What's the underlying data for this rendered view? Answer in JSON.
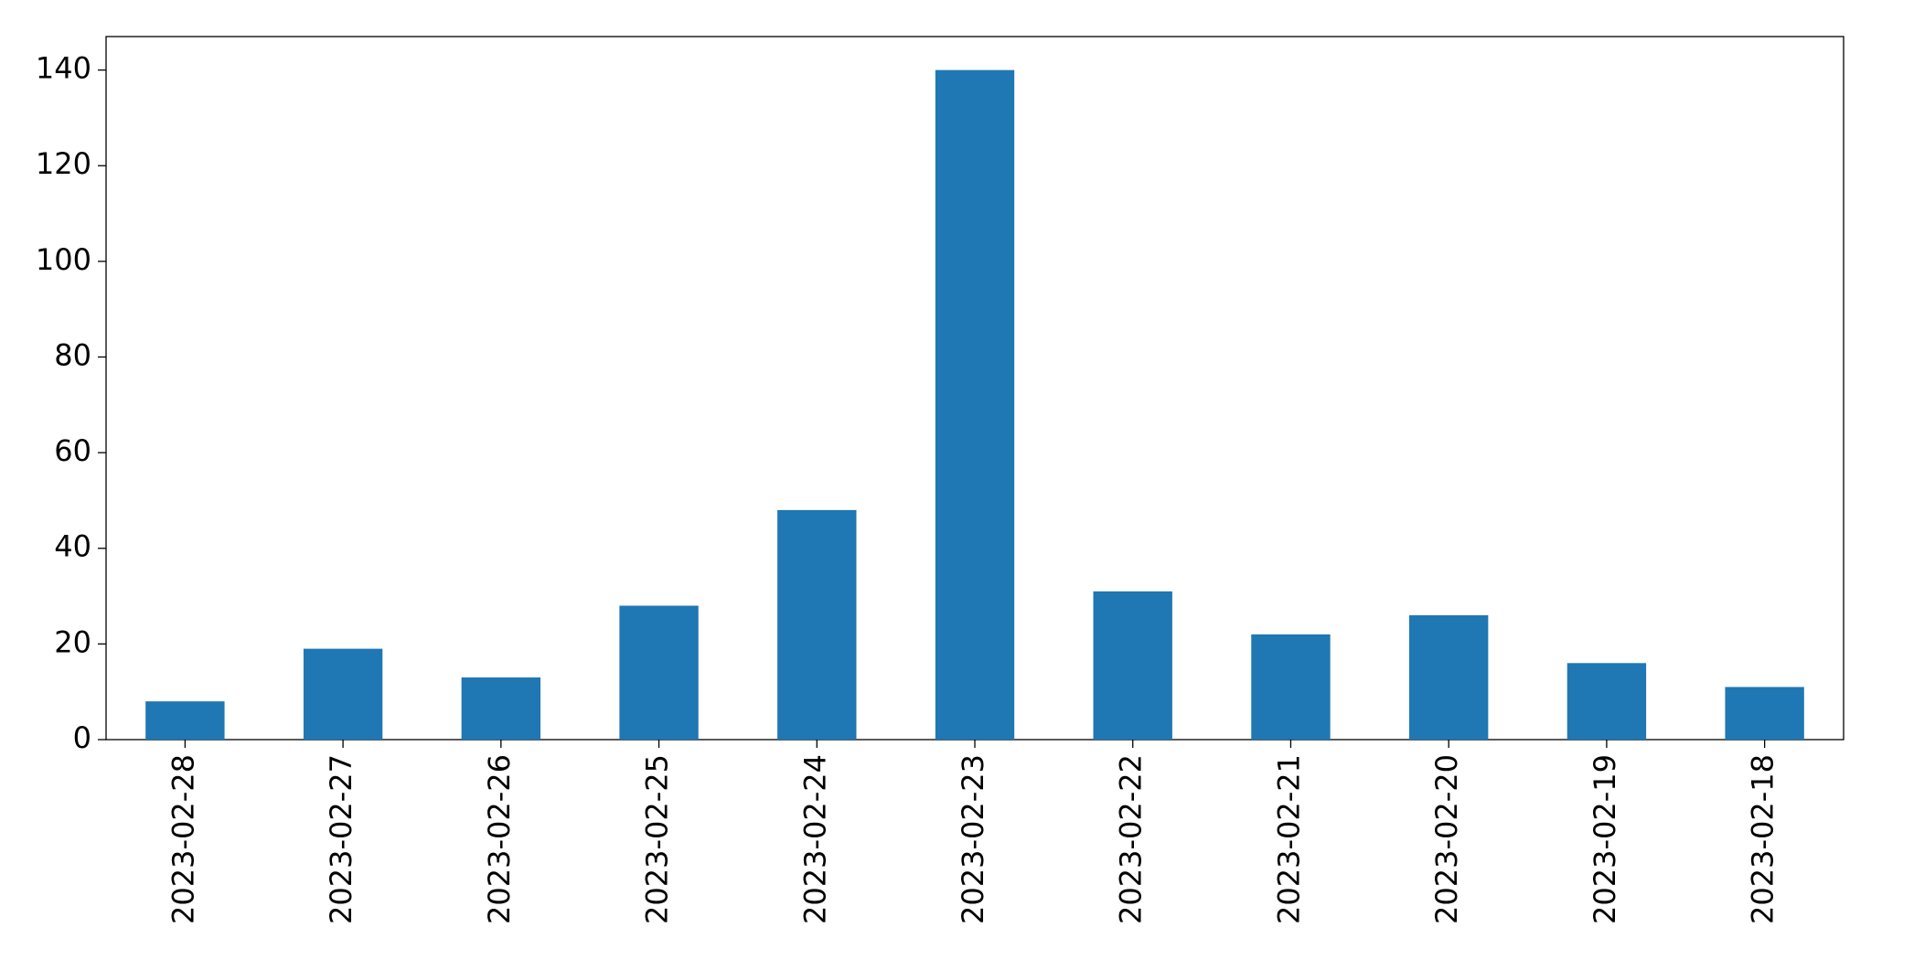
{
  "chart_data": {
    "type": "bar",
    "categories": [
      "2023-02-28",
      "2023-02-27",
      "2023-02-26",
      "2023-02-25",
      "2023-02-24",
      "2023-02-23",
      "2023-02-22",
      "2023-02-21",
      "2023-02-20",
      "2023-02-19",
      "2023-02-18"
    ],
    "values": [
      8,
      19,
      13,
      28,
      48,
      140,
      31,
      22,
      26,
      16,
      11
    ],
    "color": "#1f77b4",
    "ylim": [
      0,
      147
    ],
    "yticks": [
      0,
      20,
      40,
      60,
      80,
      100,
      120,
      140
    ],
    "grid": false
  }
}
